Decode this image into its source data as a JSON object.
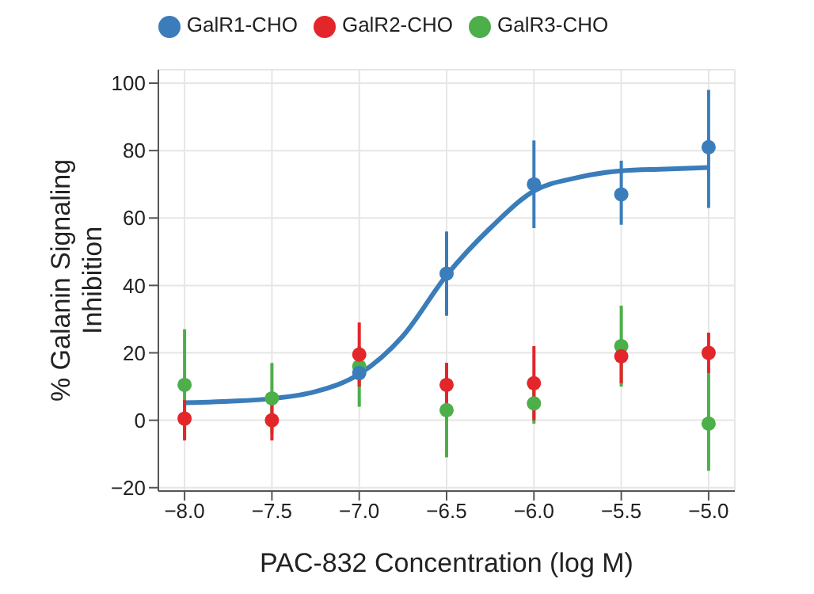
{
  "chart_data": {
    "type": "scatter",
    "xlabel": "PAC-832 Concentration (log M)",
    "ylabel": "% Galanin Signaling Inhibition",
    "x": [
      -8,
      -7.5,
      -7,
      -6.5,
      -6,
      -5.5,
      -5
    ],
    "xlim": [
      -8.15,
      -4.85
    ],
    "xticks": [
      {
        "value": -8,
        "label": "−8.0"
      },
      {
        "value": -7.5,
        "label": "−7.5"
      },
      {
        "value": -7,
        "label": "−7.0"
      },
      {
        "value": -6.5,
        "label": "−6.5"
      },
      {
        "value": -6,
        "label": "−6.0"
      },
      {
        "value": -5.5,
        "label": "−5.5"
      },
      {
        "value": -5,
        "label": "−5.0"
      }
    ],
    "ylim": [
      -21,
      104
    ],
    "yticks": [
      {
        "value": -20,
        "label": "−20"
      },
      0,
      20,
      40,
      60,
      80,
      100
    ],
    "grid": true,
    "legend": "top",
    "marker": "circle",
    "series": [
      {
        "name": "GalR1-CHO",
        "color": "#3a7dba",
        "values": [
          null,
          null,
          14,
          43.5,
          70,
          67,
          81
        ],
        "errors": [
          null,
          null,
          null,
          [
            31,
            56
          ],
          [
            57,
            83
          ],
          [
            58,
            77
          ],
          [
            63,
            98
          ]
        ]
      },
      {
        "name": "GalR2-CHO",
        "color": "#e3262a",
        "values": [
          0.5,
          0,
          19.5,
          10.5,
          11,
          19,
          20
        ],
        "errors": [
          [
            -6,
            6
          ],
          [
            -6,
            5
          ],
          [
            10,
            29
          ],
          [
            5,
            17
          ],
          [
            0,
            22
          ],
          [
            11,
            24
          ],
          [
            14,
            26
          ]
        ]
      },
      {
        "name": "GalR3-CHO",
        "color": "#4caf4a",
        "values": [
          10.5,
          6.5,
          16,
          3,
          5,
          22,
          -1
        ],
        "errors": [
          [
            -5,
            27
          ],
          [
            -4,
            17
          ],
          [
            4,
            22
          ],
          [
            -11,
            17
          ],
          [
            -1,
            10
          ],
          [
            10,
            34
          ],
          [
            -15,
            14
          ]
        ]
      },
      {
        "type": "line",
        "color": "#3a7dba",
        "marker": "none",
        "line_style": "solid",
        "x": [
          -8,
          -7.75,
          -7.5,
          -7.25,
          -7,
          -6.75,
          -6.5,
          -6.25,
          -6,
          -5.75,
          -5.5,
          -5.25,
          -5
        ],
        "values": [
          5.2,
          5.6,
          6.4,
          8.5,
          13.7,
          25,
          43,
          57,
          68,
          72,
          74,
          74.5,
          75
        ]
      }
    ]
  }
}
